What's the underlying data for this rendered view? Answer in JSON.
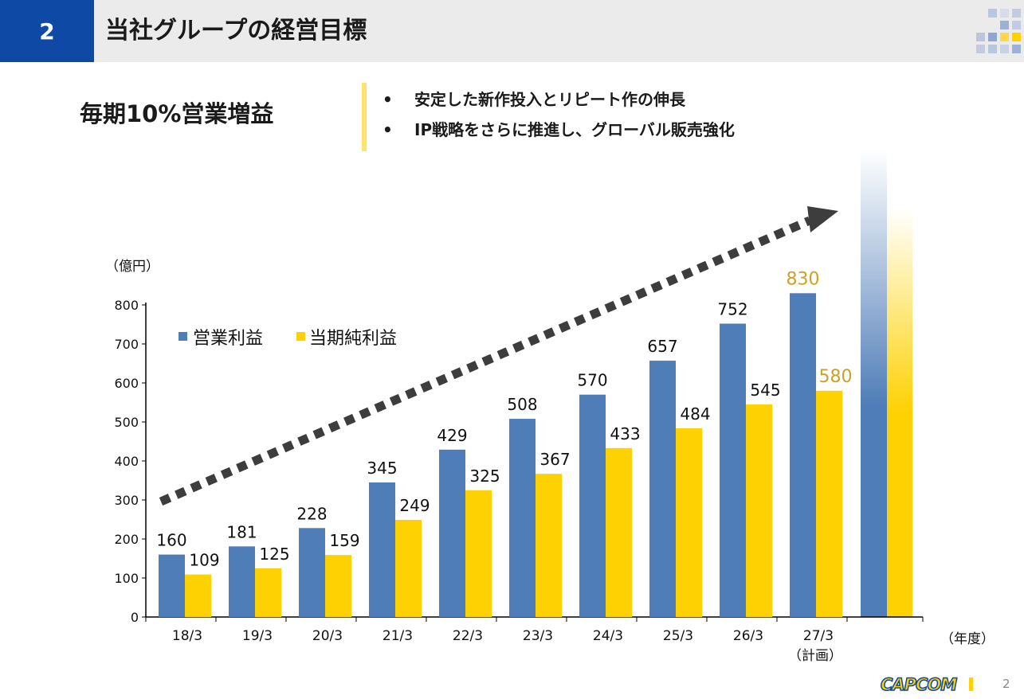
{
  "header": {
    "number": "2",
    "title": "当社グループの経営目標"
  },
  "goal": "毎期10%営業増益",
  "bullets": [
    {
      "mark": "•",
      "text": "安定した新作投入とリピート作の伸長"
    },
    {
      "mark": "•",
      "text": "IP戦略をさらに推進し、グローバル販売強化"
    }
  ],
  "footer": {
    "logo": "CAPCOM",
    "page": "2"
  },
  "colors": {
    "header_blue": "#0f49a6",
    "series_blue": "#4f7db8",
    "series_yellow": "#fed102",
    "highlight_gold": "#c9a227",
    "arrow": "#3d3d3d"
  },
  "chart_data": {
    "type": "bar",
    "categories": [
      "18/3",
      "19/3",
      "20/3",
      "21/3",
      "22/3",
      "23/3",
      "24/3",
      "25/3",
      "26/3",
      "27/3"
    ],
    "category_note": "（計画）",
    "series": [
      {
        "name": "営業利益",
        "values": [
          160,
          181,
          228,
          345,
          429,
          508,
          570,
          657,
          752,
          830
        ]
      },
      {
        "name": "当期純利益",
        "values": [
          109,
          125,
          159,
          249,
          325,
          367,
          433,
          484,
          545,
          580
        ]
      }
    ],
    "ylabel": "（億円）",
    "xlabel": "（年度）",
    "ylim": [
      0,
      800
    ],
    "yticks": [
      0,
      100,
      200,
      300,
      400,
      500,
      600,
      700,
      800
    ],
    "legend": "top-left",
    "grid": false,
    "highlighted_category": "27/3",
    "decorations": "dotted trend arrow; gradient bars beyond last category"
  }
}
